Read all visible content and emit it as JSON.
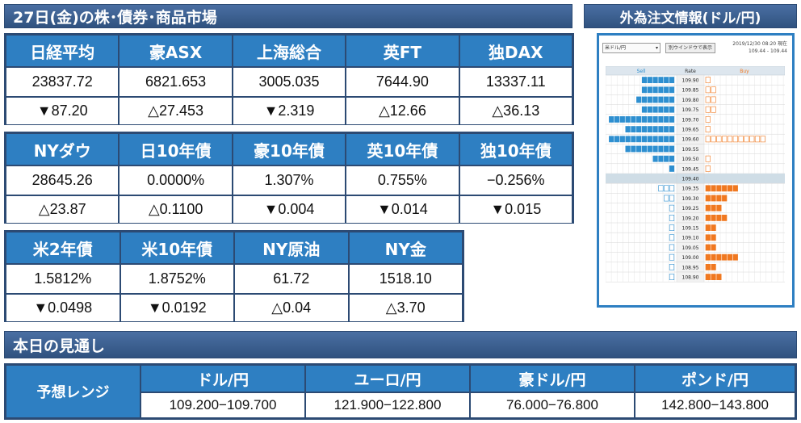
{
  "header": {
    "title": "27日(金)の株･債券･商品市場"
  },
  "fx_header": {
    "title": "外為注文情報(ドル/円)"
  },
  "stocks": [
    {
      "name": "日経平均",
      "value": "23837.72",
      "change": "▼87.20"
    },
    {
      "name": "豪ASX",
      "value": "6821.653",
      "change": "△27.453"
    },
    {
      "name": "上海総合",
      "value": "3005.035",
      "change": "▼2.319"
    },
    {
      "name": "英FT",
      "value": "7644.90",
      "change": "△12.66"
    },
    {
      "name": "独DAX",
      "value": "13337.11",
      "change": "△36.13"
    }
  ],
  "bonds": [
    {
      "name": "NYダウ",
      "value": "28645.26",
      "change": "△23.87"
    },
    {
      "name": "日10年債",
      "value": "0.0000%",
      "change": "△0.1100"
    },
    {
      "name": "豪10年債",
      "value": "1.307%",
      "change": "▼0.004"
    },
    {
      "name": "英10年債",
      "value": "0.755%",
      "change": "▼0.014"
    },
    {
      "name": "独10年債",
      "value": "−0.256%",
      "change": "▼0.015"
    }
  ],
  "commodities": [
    {
      "name": "米2年債",
      "value": "1.5812%",
      "change": "▼0.0498"
    },
    {
      "name": "米10年債",
      "value": "1.8752%",
      "change": "▼0.0192"
    },
    {
      "name": "NY原油",
      "value": "61.72",
      "change": "△0.04"
    },
    {
      "name": "NY金",
      "value": "1518.10",
      "change": "△3.70"
    }
  ],
  "order_book": {
    "pair_select": "米ドル/円",
    "open_window_button": "別ウインドウで表示",
    "timestamp": "2019/12/30 08:20 現在",
    "bid_ask": "109.44 - 109.44",
    "col_sell": "Sell",
    "col_rate": "Rate",
    "col_buy": "Buy",
    "colors": {
      "sell": "#2e8fd0",
      "buy": "#f07820"
    },
    "rows": [
      {
        "rate": "109.90",
        "sell_filled": 6,
        "sell_outline": 0,
        "buy_filled": 0,
        "buy_outline": 1
      },
      {
        "rate": "109.85",
        "sell_filled": 6,
        "sell_outline": 0,
        "buy_filled": 0,
        "buy_outline": 2
      },
      {
        "rate": "109.80",
        "sell_filled": 7,
        "sell_outline": 0,
        "buy_filled": 0,
        "buy_outline": 2
      },
      {
        "rate": "109.75",
        "sell_filled": 6,
        "sell_outline": 0,
        "buy_filled": 0,
        "buy_outline": 2
      },
      {
        "rate": "109.70",
        "sell_filled": 12,
        "sell_outline": 0,
        "buy_filled": 0,
        "buy_outline": 1
      },
      {
        "rate": "109.65",
        "sell_filled": 9,
        "sell_outline": 0,
        "buy_filled": 0,
        "buy_outline": 1
      },
      {
        "rate": "109.60",
        "sell_filled": 12,
        "sell_outline": 0,
        "buy_filled": 0,
        "buy_outline": 11
      },
      {
        "rate": "109.55",
        "sell_filled": 9,
        "sell_outline": 0,
        "buy_filled": 0,
        "buy_outline": 0
      },
      {
        "rate": "109.50",
        "sell_filled": 4,
        "sell_outline": 0,
        "buy_filled": 0,
        "buy_outline": 1
      },
      {
        "rate": "109.45",
        "sell_filled": 1,
        "sell_outline": 0,
        "buy_filled": 0,
        "buy_outline": 1
      },
      {
        "rate": "109.40",
        "sell_filled": 0,
        "sell_outline": 0,
        "buy_filled": 0,
        "buy_outline": 0,
        "current": true
      },
      {
        "rate": "109.35",
        "sell_filled": 0,
        "sell_outline": 3,
        "buy_filled": 6,
        "buy_outline": 0
      },
      {
        "rate": "109.30",
        "sell_filled": 0,
        "sell_outline": 2,
        "buy_filled": 4,
        "buy_outline": 0
      },
      {
        "rate": "109.25",
        "sell_filled": 0,
        "sell_outline": 1,
        "buy_filled": 3,
        "buy_outline": 0
      },
      {
        "rate": "109.20",
        "sell_filled": 0,
        "sell_outline": 1,
        "buy_filled": 4,
        "buy_outline": 0
      },
      {
        "rate": "109.15",
        "sell_filled": 0,
        "sell_outline": 1,
        "buy_filled": 2,
        "buy_outline": 0
      },
      {
        "rate": "109.10",
        "sell_filled": 0,
        "sell_outline": 1,
        "buy_filled": 2,
        "buy_outline": 0
      },
      {
        "rate": "109.05",
        "sell_filled": 0,
        "sell_outline": 1,
        "buy_filled": 2,
        "buy_outline": 0
      },
      {
        "rate": "109.00",
        "sell_filled": 0,
        "sell_outline": 1,
        "buy_filled": 6,
        "buy_outline": 0
      },
      {
        "rate": "108.95",
        "sell_filled": 0,
        "sell_outline": 1,
        "buy_filled": 2,
        "buy_outline": 0
      },
      {
        "rate": "108.90",
        "sell_filled": 0,
        "sell_outline": 1,
        "buy_filled": 3,
        "buy_outline": 0
      }
    ]
  },
  "outlook": {
    "title": "本日の見通し",
    "label": "予想レンジ",
    "pairs": [
      {
        "name": "ドル/円",
        "range": "109.200−109.700"
      },
      {
        "name": "ユーロ/円",
        "range": "121.900−122.800"
      },
      {
        "name": "豪ドル/円",
        "range": "76.000−76.800"
      },
      {
        "name": "ポンド/円",
        "range": "142.800−143.800"
      }
    ]
  }
}
